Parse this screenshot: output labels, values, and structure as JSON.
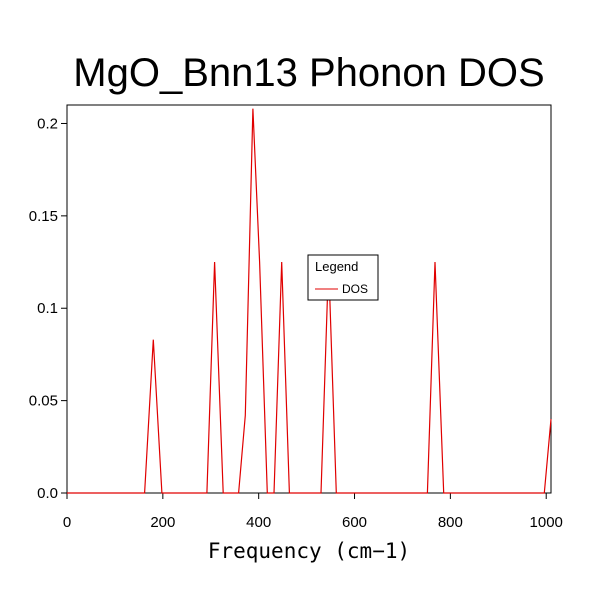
{
  "chart_data": {
    "type": "line",
    "title": "MgO_Bnn13 Phonon DOS",
    "xlabel": "Frequency (cm−1)",
    "ylabel": "",
    "xlim": [
      0,
      1010
    ],
    "ylim": [
      0,
      0.21
    ],
    "xticks": [
      0,
      200,
      400,
      600,
      800,
      1000
    ],
    "xtick_labels": [
      "0",
      "200",
      "400",
      "600",
      "800",
      "1000"
    ],
    "yticks": [
      0,
      0.05,
      0.1,
      0.15,
      0.2
    ],
    "ytick_labels": [
      "0.0",
      "0.05",
      "0.1",
      "0.15",
      "0.2"
    ],
    "grid": false,
    "legend": {
      "title": "Legend",
      "position": "center"
    },
    "series": [
      {
        "name": "DOS",
        "color": "#e00000",
        "x": [
          0,
          162,
          180,
          198,
          292,
          308,
          326,
          358,
          372,
          388,
          402,
          418,
          432,
          448,
          464,
          530,
          546,
          562,
          752,
          768,
          786,
          996,
          1010
        ],
        "y": [
          0,
          0,
          0.083,
          0,
          0,
          0.125,
          0,
          0,
          0.042,
          0.208,
          0.125,
          0,
          0,
          0.125,
          0,
          0,
          0.125,
          0,
          0,
          0.125,
          0,
          0,
          0.04
        ]
      }
    ]
  }
}
